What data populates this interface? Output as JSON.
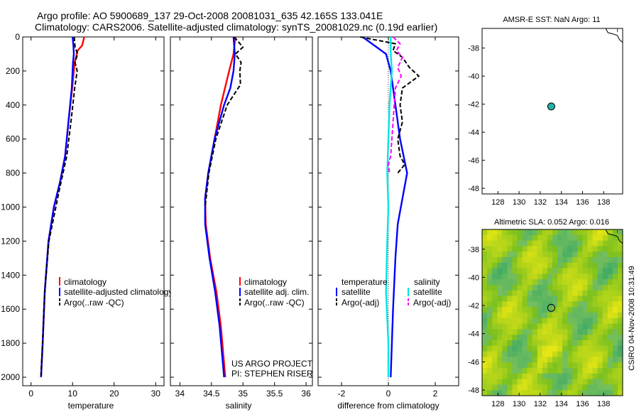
{
  "header": {
    "line1": "Argo profile: AO 5900689_137 29-Oct-2008 20081031_635 42.165S 133.041E",
    "line2": "Climatology: CARS2006. Satellite-adjusted climatology: synTS_20081029.nc (0.19d earlier)"
  },
  "footer": {
    "project": "US ARGO PROJECT",
    "pi": "PI: STEPHEN RISER",
    "stamp": "CSIRO 04-Nov-2008 10:31:49"
  },
  "colors": {
    "climatology": "#ff0000",
    "satellite": "#0000ff",
    "argo": "#000000",
    "satellite_salinity": "#00e5e5",
    "argo_salinity": "#ff00ff",
    "float_marker": "#20b2aa"
  },
  "chart_data": [
    {
      "id": "temperature",
      "type": "line",
      "xlabel": "temperature",
      "xlim": [
        -2,
        32
      ],
      "xticks": [
        "0",
        "10",
        "20",
        "30"
      ],
      "xtick_values": [
        0,
        10,
        20,
        30
      ],
      "ylim": [
        0,
        2050
      ],
      "yticks": [
        "0",
        "200",
        "400",
        "600",
        "800",
        "1000",
        "1200",
        "1400",
        "1600",
        "1800",
        "2000"
      ],
      "ytick_values": [
        0,
        200,
        400,
        600,
        800,
        1000,
        1200,
        1400,
        1600,
        1800,
        2000
      ],
      "legend": [
        "climatology",
        "satellite-adjusted climatology",
        "Argo(..raw -QC)"
      ],
      "series": [
        {
          "name": "climatology",
          "color": "#ff0000",
          "dash": false,
          "depth": [
            0,
            50,
            80,
            150,
            300,
            500,
            700,
            850,
            1000,
            1200,
            1500,
            1800,
            2000
          ],
          "values": [
            12.8,
            12.3,
            11.2,
            10.5,
            9.9,
            9.0,
            8.2,
            7.0,
            5.5,
            4.2,
            3.3,
            2.8,
            2.4
          ]
        },
        {
          "name": "satellite-adjusted climatology",
          "color": "#0000ff",
          "dash": false,
          "depth": [
            0,
            50,
            100,
            150,
            300,
            500,
            700,
            850,
            1000,
            1200,
            1500,
            1800,
            2000
          ],
          "values": [
            10.0,
            10.2,
            10.3,
            10.1,
            9.8,
            9.0,
            8.2,
            7.0,
            5.5,
            4.2,
            3.3,
            2.8,
            2.4
          ]
        },
        {
          "name": "Argo(..raw -QC)",
          "color": "#000000",
          "dash": true,
          "depth": [
            0,
            60,
            100,
            150,
            200,
            300,
            500,
            700,
            900,
            1200,
            1500,
            1800,
            1990
          ],
          "values": [
            10.4,
            10.6,
            11.2,
            10.6,
            11.1,
            10.5,
            9.6,
            8.6,
            6.8,
            4.3,
            3.3,
            2.8,
            2.4
          ]
        }
      ]
    },
    {
      "id": "salinity",
      "type": "line",
      "xlabel": "salinity",
      "xlim": [
        33.85,
        36.1
      ],
      "xticks": [
        "34",
        "34.5",
        "35",
        "35.5",
        "36"
      ],
      "xtick_values": [
        34,
        34.5,
        35,
        35.5,
        36
      ],
      "ylim": [
        0,
        2050
      ],
      "yticks": [],
      "legend": [
        "climatology",
        "satellite adj. clim.",
        "Argo(..raw -QC)"
      ],
      "series": [
        {
          "name": "climatology",
          "color": "#ff0000",
          "dash": false,
          "depth": [
            0,
            100,
            200,
            400,
            600,
            800,
            950,
            1100,
            1300,
            1500,
            1700,
            2000
          ],
          "values": [
            34.88,
            34.85,
            34.78,
            34.65,
            34.55,
            34.45,
            34.4,
            34.41,
            34.48,
            34.58,
            34.65,
            34.72
          ]
        },
        {
          "name": "satellite adj. clim.",
          "color": "#0000ff",
          "dash": false,
          "depth": [
            0,
            100,
            200,
            300,
            400,
            600,
            800,
            950,
            1100,
            1300,
            1500,
            1700,
            2000
          ],
          "values": [
            34.85,
            34.87,
            34.85,
            34.8,
            34.7,
            34.55,
            34.45,
            34.4,
            34.4,
            34.47,
            34.56,
            34.63,
            34.7
          ]
        },
        {
          "name": "Argo(..raw -QC)",
          "color": "#000000",
          "dash": true,
          "depth": [
            0,
            60,
            100,
            150,
            200,
            280,
            400,
            600,
            800,
            1000
          ],
          "values": [
            34.86,
            35.0,
            34.88,
            34.97,
            34.95,
            34.96,
            34.75,
            34.57,
            34.46,
            34.4
          ]
        }
      ]
    },
    {
      "id": "difference",
      "type": "line",
      "xlabel": "difference from climatology",
      "xlim": [
        -3,
        3
      ],
      "xticks": [
        "-2",
        "0",
        "2"
      ],
      "xtick_values": [
        -2,
        0,
        2
      ],
      "ylim": [
        0,
        2050
      ],
      "yticks": [],
      "legend_headers": [
        "temperature",
        "salinity"
      ],
      "legend": [
        "satellite",
        "Argo(-adj)",
        "satellite",
        "Argo(-adj)"
      ],
      "zero_line": 0,
      "series": [
        {
          "name": "temperature satellite",
          "color": "#0000ff",
          "dash": false,
          "depth": [
            0,
            50,
            100,
            200,
            400,
            600,
            800,
            950,
            1100,
            1300,
            1600,
            2000
          ],
          "values": [
            -1.1,
            -0.6,
            -0.1,
            0.1,
            0.3,
            0.5,
            0.8,
            0.6,
            0.4,
            0.3,
            0.2,
            0.1
          ]
        },
        {
          "name": "temperature Argo(-adj)",
          "color": "#000000",
          "dash": true,
          "depth": [
            0,
            40,
            80,
            120,
            180,
            230,
            300,
            400,
            500,
            600,
            700,
            750,
            800
          ],
          "values": [
            -1.2,
            0.3,
            0.2,
            0.6,
            0.9,
            1.3,
            0.6,
            0.5,
            0.6,
            0.4,
            0.5,
            0.7,
            0.4
          ]
        },
        {
          "name": "salinity satellite",
          "color": "#00e5e5",
          "dash": false,
          "depth": [
            0,
            100,
            200,
            400,
            600,
            800,
            1000,
            1200,
            1500,
            1800,
            2000
          ],
          "values": [
            0.1,
            0.1,
            0.15,
            0.05,
            0.0,
            -0.05,
            0.0,
            -0.05,
            -0.1,
            0.0,
            0.0
          ]
        },
        {
          "name": "salinity Argo(-adj)",
          "color": "#ff00ff",
          "dash": true,
          "depth": [
            0,
            40,
            80,
            120,
            180,
            230,
            300,
            700,
            750,
            800
          ],
          "values": [
            0.2,
            0.5,
            0.35,
            0.6,
            0.4,
            0.55,
            0.3,
            0.1,
            0.0,
            0.05
          ]
        }
      ]
    },
    {
      "id": "sst-map",
      "type": "scatter",
      "title": "AMSR-E SST: NaN Argo: 11",
      "xlim": [
        126.5,
        139.8
      ],
      "ylim": [
        -48.4,
        -36.6
      ],
      "xticks": [
        "128",
        "130",
        "132",
        "134",
        "136",
        "138"
      ],
      "xtick_values": [
        128,
        130,
        132,
        134,
        136,
        138
      ],
      "yticks": [
        "-38",
        "-40",
        "-42",
        "-44",
        "-46",
        "-48"
      ],
      "ytick_values": [
        -38,
        -40,
        -42,
        -44,
        -46,
        -48
      ],
      "float_position": {
        "lon": 133.041,
        "lat": -42.165
      }
    },
    {
      "id": "sla-map",
      "type": "heatmap",
      "title": "Altimetric SLA: 0.052 Argo: 0.016",
      "xlim": [
        126.5,
        139.8
      ],
      "ylim": [
        -48.4,
        -36.6
      ],
      "xticks": [
        "128",
        "130",
        "132",
        "134",
        "136",
        "138"
      ],
      "xtick_values": [
        128,
        130,
        132,
        134,
        136,
        138
      ],
      "yticks": [
        "-38",
        "-40",
        "-42",
        "-44",
        "-46",
        "-48"
      ],
      "ytick_values": [
        -38,
        -40,
        -42,
        -44,
        -46,
        -48
      ],
      "float_position": {
        "lon": 133.041,
        "lat": -42.165
      }
    }
  ]
}
